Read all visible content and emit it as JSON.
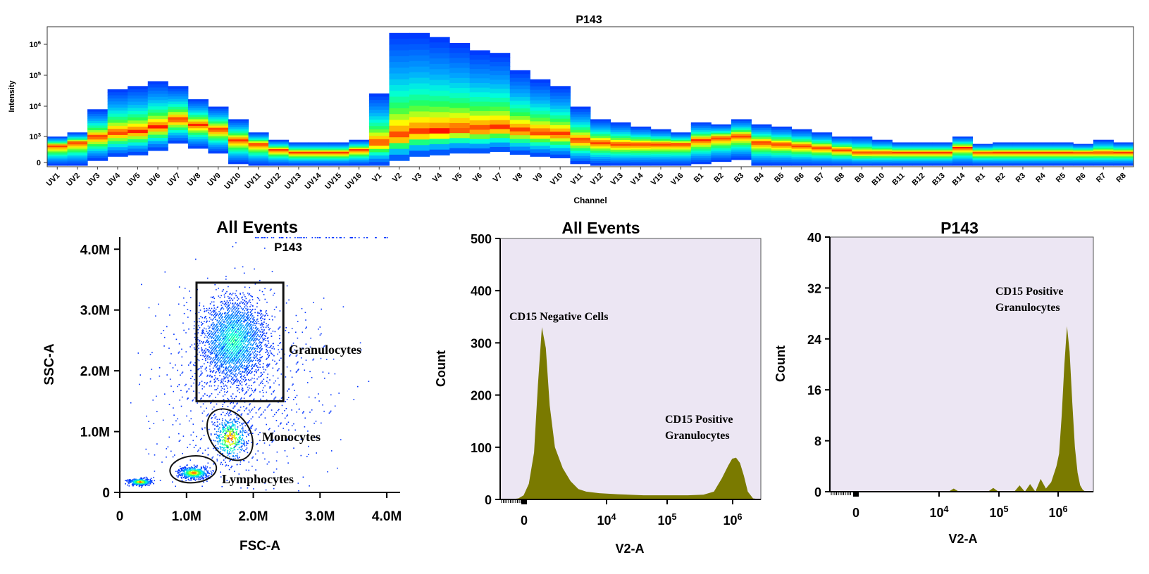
{
  "colors": {
    "fill_histogram": "#7a7a00",
    "plot_background": "#ece6f3",
    "heat_low": "#0033ff",
    "heat_high": "#ff0000"
  },
  "chart_data": [
    {
      "id": "spectral",
      "type": "heatmap",
      "title": "P143",
      "xlabel": "Channel",
      "ylabel": "Intensity",
      "y_scale": "log",
      "y_ticks": [
        "0",
        "10³",
        "10⁴",
        "10⁵",
        "10⁶"
      ],
      "categories": [
        "UV1",
        "UV2",
        "UV3",
        "UV4",
        "UV5",
        "UV6",
        "UV7",
        "UV8",
        "UV9",
        "UV10",
        "UV11",
        "UV12",
        "UV13",
        "UV14",
        "UV15",
        "UV16",
        "V1",
        "V2",
        "V3",
        "V4",
        "V5",
        "V6",
        "V7",
        "V8",
        "V9",
        "V10",
        "V11",
        "V12",
        "V13",
        "V14",
        "V15",
        "V16",
        "B1",
        "B2",
        "B3",
        "B4",
        "B5",
        "B6",
        "B7",
        "B8",
        "B9",
        "B10",
        "B11",
        "B12",
        "B13",
        "B14",
        "R1",
        "R2",
        "R3",
        "R4",
        "R5",
        "R6",
        "R7",
        "R8"
      ],
      "series": [
        {
          "name": "",
          "values": [
            800,
            1000,
            1500,
            2000,
            2200,
            3000,
            5000,
            3500,
            2500,
            1200,
            900,
            600,
            500,
            500,
            500,
            600,
            1000,
            1500,
            2000,
            2200,
            2500,
            2500,
            2800,
            2300,
            2000,
            1800,
            1200,
            1000,
            900,
            900,
            900,
            900,
            1200,
            1400,
            1600,
            1000,
            900,
            800,
            700,
            600,
            500,
            500,
            500,
            500,
            500,
            700,
            500,
            500,
            500,
            500,
            500,
            500,
            500,
            500
          ]
        },
        {
          "name": "",
          "values": [
            1500,
            2000,
            10000,
            40000,
            50000,
            70000,
            50000,
            20000,
            12000,
            5000,
            2000,
            1200,
            1000,
            1000,
            1000,
            1200,
            30000,
            2000000,
            2000000,
            1500000,
            1000000,
            600000,
            500000,
            150000,
            80000,
            50000,
            12000,
            5000,
            4000,
            3000,
            2500,
            2000,
            4000,
            3500,
            5000,
            3500,
            3000,
            2500,
            2000,
            1500,
            1500,
            1200,
            1000,
            1000,
            1000,
            1500,
            900,
            1000,
            1000,
            1000,
            1000,
            900,
            1200,
            1000
          ]
        }
      ]
    },
    {
      "id": "scatter",
      "type": "scatter",
      "title": "All Events",
      "subtitle": "P143",
      "xlabel": "FSC-A",
      "ylabel": "SSC-A",
      "xlim": [
        0,
        4200000
      ],
      "ylim": [
        0,
        4200000
      ],
      "x_ticks": [
        "0",
        "1.0M",
        "2.0M",
        "3.0M",
        "4.0M"
      ],
      "y_ticks": [
        "0",
        "1.0M",
        "2.0M",
        "3.0M",
        "4.0M"
      ],
      "populations": [
        {
          "name": "Granulocytes",
          "center": [
            1700000,
            2500000
          ],
          "spread": [
            350000,
            500000
          ]
        },
        {
          "name": "Monocytes",
          "center": [
            1650000,
            900000
          ],
          "spread": [
            180000,
            250000
          ]
        },
        {
          "name": "Lymphocytes",
          "center": [
            1100000,
            350000
          ],
          "spread": [
            150000,
            80000
          ]
        }
      ],
      "gates": [
        {
          "name": "Granulocytes",
          "shape": "rectangle",
          "x": [
            1150000,
            2450000
          ],
          "y": [
            1500000,
            3450000
          ]
        },
        {
          "name": "Monocytes",
          "shape": "ellipse",
          "center": [
            1650000,
            950000
          ],
          "radius": [
            320000,
            420000
          ]
        },
        {
          "name": "Lymphocytes",
          "shape": "ellipse",
          "center": [
            1100000,
            380000
          ],
          "radius": [
            360000,
            200000
          ]
        }
      ]
    },
    {
      "id": "hist1",
      "type": "area",
      "title": "All Events",
      "xlabel": "V2-A",
      "ylabel": "Count",
      "ylim": [
        0,
        500
      ],
      "y_ticks": [
        "0",
        "100",
        "200",
        "300",
        "400",
        "500"
      ],
      "x_ticks": [
        "0",
        "10⁴",
        "10⁵",
        "10⁶"
      ],
      "annotations": [
        {
          "text": "CD15 Negative Cells"
        },
        {
          "text": "CD15 Positive Granulocytes"
        }
      ],
      "x_pos": [
        0.0,
        0.04,
        0.07,
        0.09,
        0.11,
        0.13,
        0.145,
        0.16,
        0.175,
        0.19,
        0.21,
        0.24,
        0.27,
        0.3,
        0.33,
        0.38,
        0.45,
        0.55,
        0.65,
        0.72,
        0.78,
        0.82,
        0.85,
        0.875,
        0.89,
        0.905,
        0.92,
        0.935,
        0.95,
        0.97,
        1.0
      ],
      "values": [
        0,
        0,
        2,
        8,
        30,
        90,
        220,
        330,
        290,
        180,
        100,
        60,
        35,
        20,
        15,
        12,
        10,
        8,
        8,
        8,
        9,
        15,
        40,
        65,
        78,
        80,
        70,
        45,
        15,
        2,
        0
      ]
    },
    {
      "id": "hist2",
      "type": "area",
      "title": "P143",
      "xlabel": "V2-A",
      "ylabel": "Count",
      "ylim": [
        0,
        40
      ],
      "y_ticks": [
        "0",
        "8",
        "16",
        "24",
        "32",
        "40"
      ],
      "x_ticks": [
        "0",
        "10⁴",
        "10⁵",
        "10⁶"
      ],
      "annotations": [
        {
          "text": "CD15 Positive Granulocytes"
        }
      ],
      "x_pos": [
        0.0,
        0.4,
        0.45,
        0.47,
        0.49,
        0.52,
        0.6,
        0.62,
        0.64,
        0.66,
        0.7,
        0.72,
        0.74,
        0.76,
        0.78,
        0.8,
        0.82,
        0.84,
        0.86,
        0.87,
        0.88,
        0.89,
        0.9,
        0.91,
        0.92,
        0.93,
        0.94,
        0.95,
        0.96,
        0.97,
        0.985,
        1.0
      ],
      "values": [
        0,
        0,
        0,
        0.5,
        0,
        0,
        0,
        0.6,
        0,
        0,
        0,
        1,
        0,
        1.2,
        0,
        2,
        0.5,
        1.5,
        4,
        6,
        12,
        20,
        26,
        22,
        14,
        7,
        3,
        1,
        0.3,
        0,
        0,
        0
      ]
    }
  ]
}
